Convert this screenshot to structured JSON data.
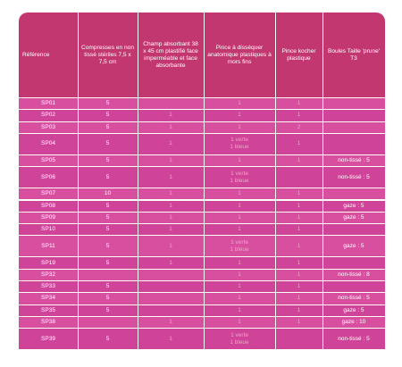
{
  "colors": {
    "header_bg": "#c2376f",
    "row_bg": "#d84fa0",
    "row_bg_alt": "#cf4498",
    "divider": "#ffffff",
    "text": "#ffffff",
    "faint_text": "#e9a6c4"
  },
  "headers": [
    "Référence",
    "Compresses en non tissé stériles 7,5 x 7,5 cm",
    "Champ absorbant 38 x 45 cm plastifié face imperméable et face absorbante",
    "Pince à disséquer anatomique plastiques à mors fins",
    "Pince kocher plastique",
    "Boules Taille 'prune' T3"
  ],
  "rows": [
    {
      "ref": "SP01",
      "c1": "5",
      "c2": "",
      "c3": "1",
      "c4": "1",
      "c5": ""
    },
    {
      "ref": "SP02",
      "c1": "5",
      "c2": "1",
      "c3": "1",
      "c4": "1",
      "c5": ""
    },
    {
      "ref": "SP03",
      "c1": "5",
      "c2": "1",
      "c3": "1",
      "c4": "2",
      "c5": ""
    },
    {
      "ref": "SP04",
      "c1": "5",
      "c2": "1",
      "c3": "1 verte\n1 bleue",
      "c4": "1",
      "c5": ""
    },
    {
      "ref": "SP05",
      "c1": "5",
      "c2": "1",
      "c3": "1",
      "c4": "1",
      "c5": "non-tissé : 5"
    },
    {
      "ref": "SP06",
      "c1": "5",
      "c2": "1",
      "c3": "1 verte\n1 bleue",
      "c4": "",
      "c5": "non-tissé : 5"
    },
    {
      "ref": "SP07",
      "c1": "10",
      "c2": "1",
      "c3": "1",
      "c4": "1",
      "c5": ""
    },
    {
      "ref": "SP08",
      "c1": "5",
      "c2": "1",
      "c3": "1",
      "c4": "1",
      "c5": "gaze : 5"
    },
    {
      "ref": "SP09",
      "c1": "5",
      "c2": "1",
      "c3": "1",
      "c4": "1",
      "c5": "gaze : 5"
    },
    {
      "ref": "SP10",
      "c1": "5",
      "c2": "1",
      "c3": "1",
      "c4": "1",
      "c5": ""
    },
    {
      "ref": "SP11",
      "c1": "5",
      "c2": "1",
      "c3": "1 verte\n1 bleue",
      "c4": "1",
      "c5": "gaze : 5"
    },
    {
      "ref": "SP19",
      "c1": "5",
      "c2": "1",
      "c3": "1",
      "c4": "1",
      "c5": ""
    },
    {
      "ref": "SP32",
      "c1": "",
      "c2": "",
      "c3": "1",
      "c4": "1",
      "c5": "non-tissé : 8"
    },
    {
      "ref": "SP33",
      "c1": "5",
      "c2": "",
      "c3": "1",
      "c4": "1",
      "c5": ""
    },
    {
      "ref": "SP34",
      "c1": "5",
      "c2": "",
      "c3": "1",
      "c4": "1",
      "c5": "non-tissé : 5"
    },
    {
      "ref": "SP35",
      "c1": "5",
      "c2": "",
      "c3": "1",
      "c4": "1",
      "c5": "gaze : 5"
    },
    {
      "ref": "SP38",
      "c1": "",
      "c2": "1",
      "c3": "1",
      "c4": "1",
      "c5": "gaze : 10"
    },
    {
      "ref": "SP39",
      "c1": "5",
      "c2": "1",
      "c3": "1 verte\n1 bleue",
      "c4": "",
      "c5": "non-tissé : 5"
    }
  ]
}
